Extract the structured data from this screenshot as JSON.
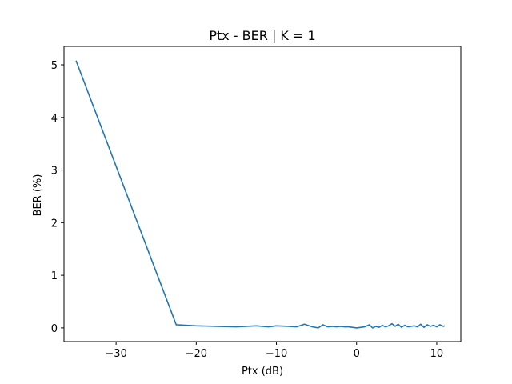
{
  "chart_data": {
    "type": "line",
    "title": "Ptx - BER | K = 1",
    "xlabel": "Ptx (dB)",
    "ylabel": "BER (%)",
    "xlim": [
      -36.5,
      13.0
    ],
    "ylim": [
      -0.26,
      5.35
    ],
    "xticks": [
      -30,
      -20,
      -10,
      0,
      10
    ],
    "xtick_labels": [
      "−30",
      "−20",
      "−10",
      "0",
      "10"
    ],
    "yticks": [
      0,
      1,
      2,
      3,
      4,
      5
    ],
    "ytick_labels": [
      "0",
      "1",
      "2",
      "3",
      "4",
      "5"
    ],
    "grid": false,
    "legend": "none",
    "series": [
      {
        "color": "#1f77b4",
        "x": [
          -35,
          -22.5,
          -20,
          -17.5,
          -15,
          -12.5,
          -11,
          -10,
          -8.5,
          -7.5,
          -6.5,
          -5.5,
          -4.8,
          -4.2,
          -3.6,
          -3.0,
          -2.5,
          -2.0,
          -1.5,
          -1.0,
          0,
          1,
          1.6,
          2.0,
          2.4,
          2.8,
          3.2,
          3.6,
          4.0,
          4.4,
          4.8,
          5.2,
          5.6,
          6.0,
          6.4,
          6.8,
          7.2,
          7.6,
          8.0,
          8.4,
          8.8,
          9.2,
          9.6,
          10.0,
          10.4,
          10.8,
          11.0
        ],
        "y": [
          5.08,
          0.06,
          0.04,
          0.03,
          0.02,
          0.04,
          0.02,
          0.04,
          0.03,
          0.02,
          0.07,
          0.02,
          0.0,
          0.06,
          0.02,
          0.03,
          0.02,
          0.03,
          0.02,
          0.02,
          0.0,
          0.02,
          0.06,
          0.0,
          0.03,
          0.01,
          0.05,
          0.02,
          0.04,
          0.08,
          0.03,
          0.07,
          0.01,
          0.05,
          0.02,
          0.03,
          0.04,
          0.02,
          0.07,
          0.01,
          0.06,
          0.03,
          0.05,
          0.02,
          0.06,
          0.03,
          0.04
        ]
      }
    ]
  }
}
